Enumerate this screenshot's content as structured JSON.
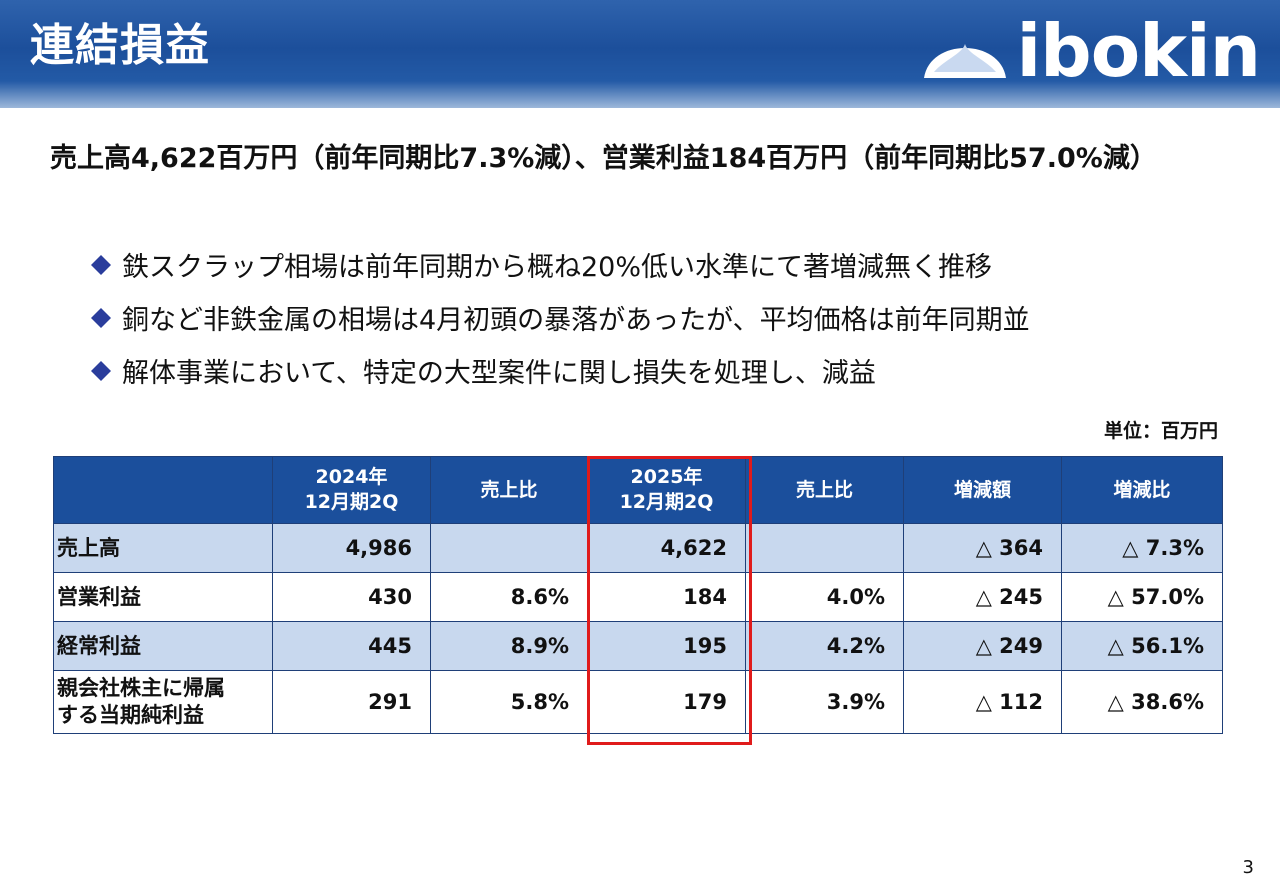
{
  "header": {
    "title": "連結損益",
    "logo_text": "ibokin"
  },
  "headline": "売上高4,622百万円（前年同期比7.3%減）、営業利益184百万円（前年同期比57.0%減）",
  "bullets": [
    "鉄スクラップ相場は前年同期から概ね20%低い水準にて著増減無く推移",
    "銅など非鉄金属の相場は4月初頭の暴落があったが、平均価格は前年同期並",
    "解体事業において、特定の大型案件に関し損失を処理し、減益"
  ],
  "unit": "単位：百万円",
  "table": {
    "headers": [
      "",
      "2024年\n12月期2Q",
      "売上比",
      "2025年\n12月期2Q",
      "売上比",
      "増減額",
      "増減比"
    ],
    "rows": [
      {
        "label": "売上高",
        "v2024": "4,986",
        "r2024": "",
        "v2025": "4,622",
        "r2025": "",
        "diff": "△ 364",
        "diff_ratio": "△ 7.3%"
      },
      {
        "label": "営業利益",
        "v2024": "430",
        "r2024": "8.6%",
        "v2025": "184",
        "r2025": "4.0%",
        "diff": "△ 245",
        "diff_ratio": "△ 57.0%"
      },
      {
        "label": "経常利益",
        "v2024": "445",
        "r2024": "8.9%",
        "v2025": "195",
        "r2025": "4.2%",
        "diff": "△ 249",
        "diff_ratio": "△ 56.1%"
      },
      {
        "label": "親会社株主に帰属\nする当期純利益",
        "v2024": "291",
        "r2024": "5.8%",
        "v2025": "179",
        "r2025": "3.9%",
        "diff": "△ 112",
        "diff_ratio": "△ 38.6%"
      }
    ]
  },
  "page_number": "3",
  "colors": {
    "header_blue": "#1c4f9b",
    "table_header": "#1b4f9c",
    "row_shade": "#c8d8ee",
    "highlight_red": "#e01b1b",
    "bullet_blue": "#2a3d9c"
  },
  "icons": {
    "bullet": "diamond-icon",
    "logo": "mountain-dome-icon"
  }
}
